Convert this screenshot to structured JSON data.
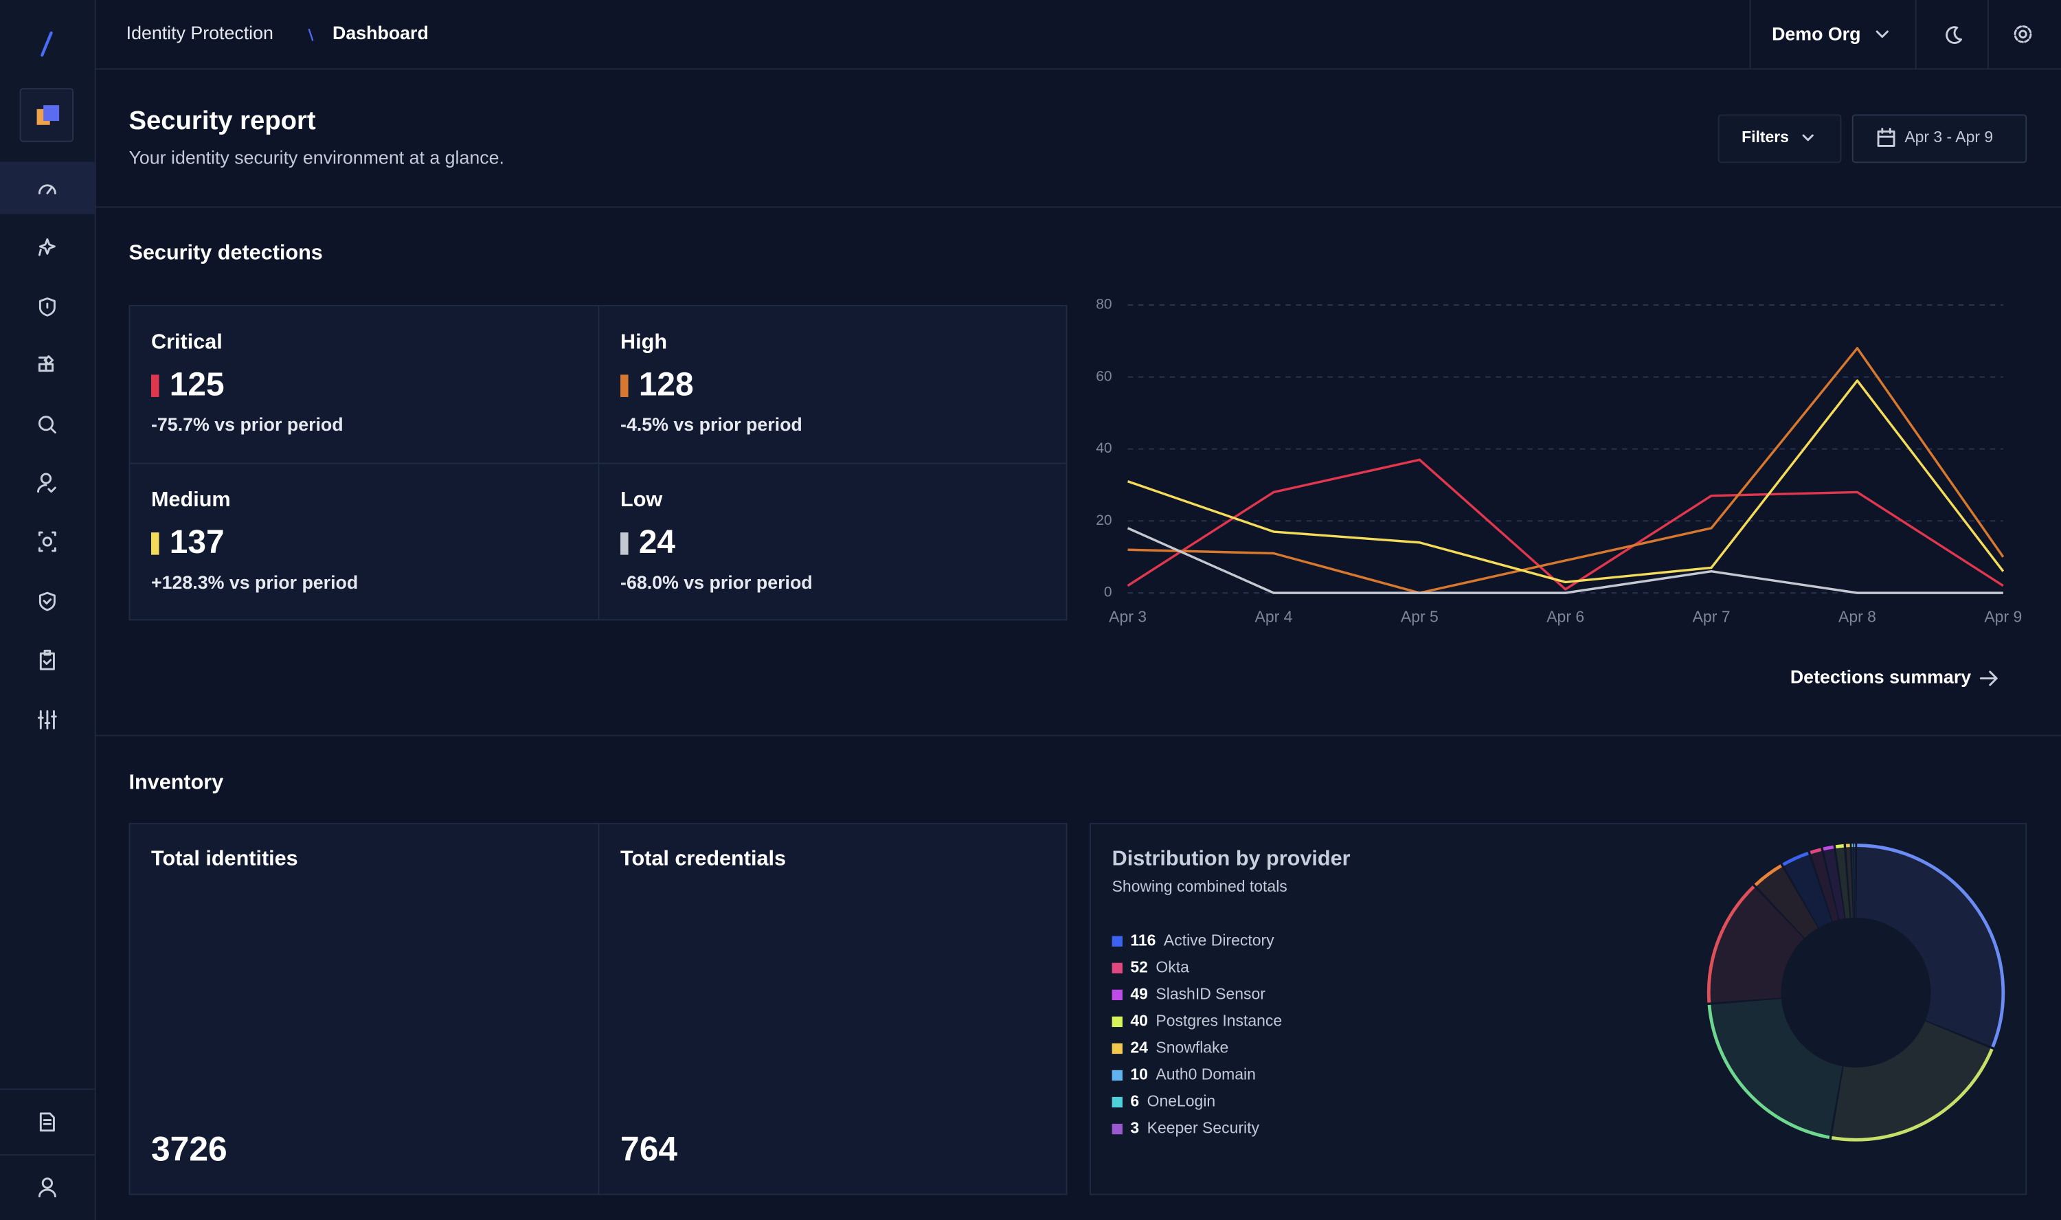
{
  "nav": {
    "breadcrumb": [
      "Identity Protection",
      "Dashboard"
    ],
    "org": "Demo Org"
  },
  "page": {
    "title": "Security report",
    "subtitle": "Your identity security environment at a glance.",
    "filters": "Filters",
    "date_range": "Apr 3 - Apr 9"
  },
  "detections": {
    "title": "Security detections",
    "cards": [
      {
        "label": "Critical",
        "value": 125,
        "change": "-75.7% vs prior period"
      },
      {
        "label": "High",
        "value": 128,
        "change": "-4.5% vs prior period"
      },
      {
        "label": "Medium",
        "value": 137,
        "change": "+128.3% vs prior period"
      },
      {
        "label": "Low",
        "value": 24,
        "change": "-68.0% vs prior period"
      }
    ],
    "link": "Detections summary"
  },
  "chart_data": [
    {
      "type": "line",
      "x": [
        "Apr 3",
        "Apr 4",
        "Apr 5",
        "Apr 6",
        "Apr 7",
        "Apr 8",
        "Apr 9"
      ],
      "series": [
        {
          "name": "Critical",
          "color": "#e0374f",
          "values": [
            2,
            28,
            37,
            1,
            27,
            28,
            2
          ]
        },
        {
          "name": "High",
          "color": "#d8782e",
          "values": [
            12,
            11,
            0,
            9,
            18,
            68,
            10
          ]
        },
        {
          "name": "Medium",
          "color": "#f4dc5a",
          "values": [
            31,
            17,
            14,
            3,
            7,
            59,
            6
          ]
        },
        {
          "name": "Low",
          "color": "#c4c8d0",
          "values": [
            18,
            0,
            0,
            0,
            6,
            0,
            0
          ]
        }
      ],
      "ylim": [
        0,
        80
      ],
      "yticks": [
        0,
        20,
        40,
        60,
        80
      ],
      "grid": true
    },
    {
      "type": "donut",
      "title": "Distribution by provider",
      "subtitle": "Showing combined totals",
      "segments": [
        {
          "value": 1118,
          "color": "#6b8cf5"
        },
        {
          "value": 776,
          "color": "#c7e06a"
        },
        {
          "value": 755,
          "color": "#6fd88f"
        },
        {
          "value": 507,
          "color": "#e0505a"
        },
        {
          "value": 134,
          "color": "#e8833a"
        },
        {
          "name": "Active Directory",
          "value": 116,
          "color": "#3b63f0"
        },
        {
          "name": "Okta",
          "value": 52,
          "color": "#e0487f"
        },
        {
          "name": "SlashID Sensor",
          "value": 49,
          "color": "#c04ce8"
        },
        {
          "name": "Postgres Instance",
          "value": 40,
          "color": "#d8f25a"
        },
        {
          "name": "Snowflake",
          "value": 24,
          "color": "#f2c94c"
        },
        {
          "name": "Auth0 Domain",
          "value": 10,
          "color": "#5fb4f0"
        },
        {
          "name": "OneLogin",
          "value": 6,
          "color": "#4fd1d9"
        },
        {
          "name": "Keeper Security",
          "value": 3,
          "color": "#9b59d0"
        }
      ]
    }
  ],
  "inventory": {
    "title": "Inventory",
    "cards": [
      {
        "label": "Total identities",
        "value": 3726
      },
      {
        "label": "Total credentials",
        "value": 764
      }
    ]
  }
}
